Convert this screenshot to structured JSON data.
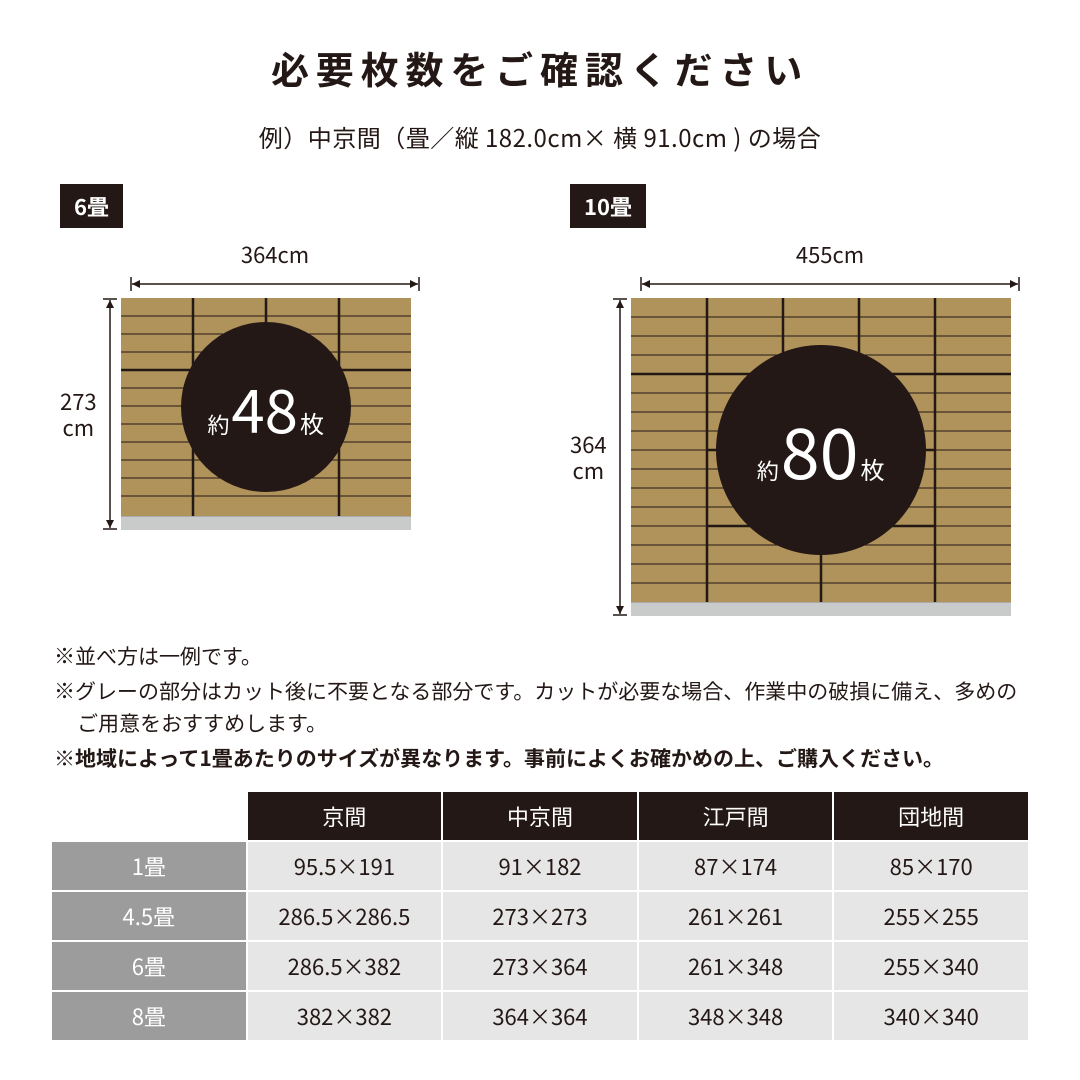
{
  "title": "必要枚数をご確認ください",
  "subtitle": "例）中京間（畳／縦 182.0cm× 横 91.0cm ) の場合",
  "diagrams": {
    "d6": {
      "tag": "6畳",
      "width_label": "364cm",
      "height_label_1": "273",
      "height_label_2": "cm",
      "count_pre": "約",
      "count_num": "48",
      "count_suf": "枚",
      "floor_color": "#b0925b",
      "line_color": "#231815",
      "circle_bg": "#231815",
      "skirt_color": "#c9caca"
    },
    "d10": {
      "tag": "10畳",
      "width_label": "455cm",
      "height_label_1": "364",
      "height_label_2": "cm",
      "count_pre": "約",
      "count_num": "80",
      "count_suf": "枚",
      "floor_color": "#b0925b",
      "line_color": "#231815",
      "circle_bg": "#231815",
      "skirt_color": "#c9caca"
    }
  },
  "notes": {
    "n1": "※並べ方は一例です。",
    "n2": "※グレーの部分はカット後に不要となる部分です。カットが必要な場合、作業中の破損に備え、多めのご用意をおすすめします。",
    "n3": "※地域によって1畳あたりのサイズが異なります。事前によくお確かめの上、ご購入ください。"
  },
  "table": {
    "header_blank": "",
    "headers": [
      "京間",
      "中京間",
      "江戸間",
      "団地間"
    ],
    "rows": [
      {
        "label": "1畳",
        "cells": [
          "95.5×191",
          "91×182",
          "87×174",
          "85×170"
        ]
      },
      {
        "label": "4.5畳",
        "cells": [
          "286.5×286.5",
          "273×273",
          "261×261",
          "255×255"
        ]
      },
      {
        "label": "6畳",
        "cells": [
          "286.5×382",
          "273×364",
          "261×348",
          "255×340"
        ]
      },
      {
        "label": "8畳",
        "cells": [
          "382×382",
          "364×364",
          "348×348",
          "340×340"
        ]
      }
    ],
    "header_bg": "#231815",
    "row_header_bg": "#9c9c9c",
    "cell_bg": "#e6e6e6",
    "border_color": "#ffffff"
  },
  "styling": {
    "background": "#ffffff",
    "text_color": "#231815",
    "title_fontsize": 38,
    "subtitle_fontsize": 24,
    "notes_fontsize": 21,
    "table_fontsize": 22
  }
}
